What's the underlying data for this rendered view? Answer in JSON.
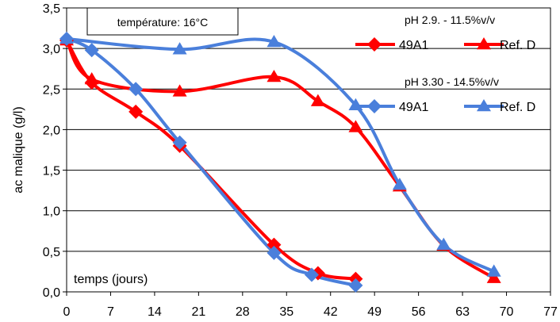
{
  "chart_data": {
    "type": "line",
    "xlabel": "temps (jours)",
    "ylabel": "ac malique (g/l)",
    "annotation": "température: 16°C",
    "xlim": [
      0,
      77
    ],
    "ylim": [
      0,
      3.5
    ],
    "x_ticks": [
      "0",
      "7",
      "14",
      "21",
      "28",
      "35",
      "42",
      "49",
      "56",
      "63",
      "70",
      "77"
    ],
    "y_ticks": [
      "0,0",
      "0,5",
      "1,0",
      "1,5",
      "2,0",
      "2,5",
      "3,0",
      "3,5"
    ],
    "grid": "horizontal",
    "legend_groups": [
      {
        "title": "pH 2.9. - 11.5%v/v",
        "entries": [
          "49A1",
          "Ref. D"
        ]
      },
      {
        "title": "pH 3.30 - 14.5%v/v",
        "entries": [
          "49A1",
          "Ref. D"
        ]
      }
    ],
    "series": [
      {
        "name": "49A1",
        "group": "pH 2.9. - 11.5%v/v",
        "color": "#ff0000",
        "marker": "diamond",
        "x": [
          0,
          4,
          11,
          18,
          33,
          40,
          46
        ],
        "y": [
          3.1,
          2.58,
          2.22,
          1.8,
          0.58,
          0.23,
          0.16
        ]
      },
      {
        "name": "Ref. D",
        "group": "pH 2.9. - 11.5%v/v",
        "color": "#ff0000",
        "marker": "triangle",
        "x": [
          0,
          4,
          18,
          33,
          40,
          46,
          53,
          60,
          68
        ],
        "y": [
          3.1,
          2.62,
          2.47,
          2.65,
          2.35,
          2.03,
          1.3,
          0.57,
          0.17
        ]
      },
      {
        "name": "49A1",
        "group": "pH 3.30 - 14.5%v/v",
        "color": "#4a7fdb",
        "marker": "diamond",
        "x": [
          0,
          4,
          11,
          18,
          33,
          39,
          46
        ],
        "y": [
          3.12,
          2.98,
          2.5,
          1.84,
          0.48,
          0.21,
          0.08
        ]
      },
      {
        "name": "Ref. D",
        "group": "pH 3.30 - 14.5%v/v",
        "color": "#4a7fdb",
        "marker": "triangle",
        "x": [
          0,
          18,
          33,
          46,
          53,
          60,
          68
        ],
        "y": [
          3.12,
          2.99,
          3.08,
          2.3,
          1.32,
          0.58,
          0.25
        ]
      }
    ]
  }
}
